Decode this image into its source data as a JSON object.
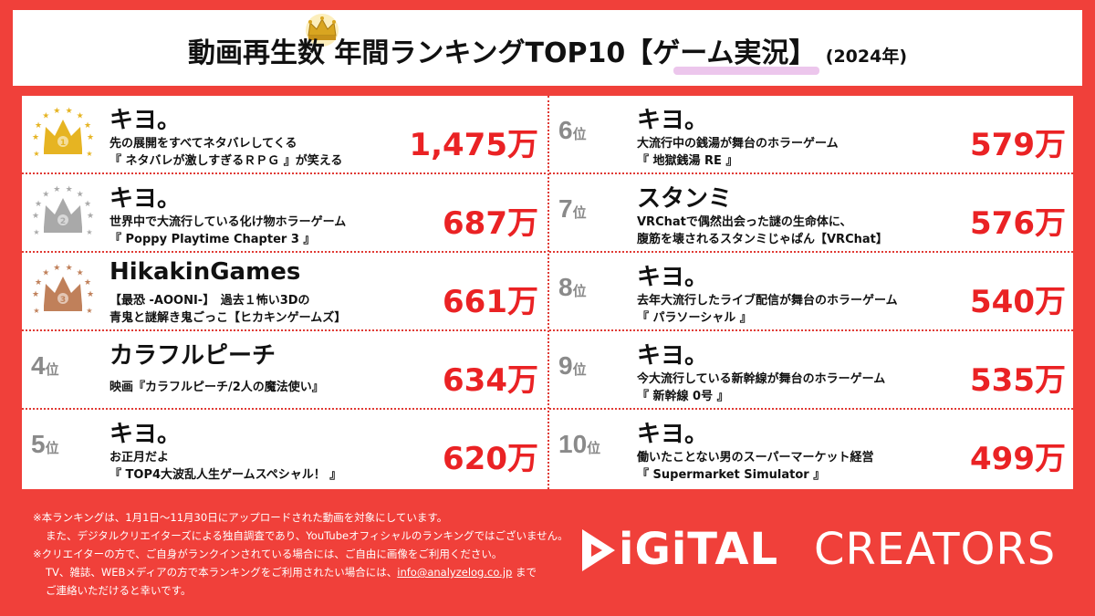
{
  "header": {
    "title": "動画再生数 年間ランキングTOP10【ゲーム実況】",
    "year": "(2024年)"
  },
  "rank_suffix": "位",
  "rankings": [
    {
      "rank": "1",
      "name": "キヨ。",
      "desc": [
        "先の展開をすべてネタバレしてくる",
        "『 ネタバレが激しすぎるＲＰＧ 』が笑える"
      ],
      "views": "1,475万",
      "medal": "gold",
      "medal_color": "#e6b422"
    },
    {
      "rank": "2",
      "name": "キヨ。",
      "desc": [
        "世界中で大流行している化け物ホラーゲーム",
        "『 Poppy Playtime Chapter 3 』"
      ],
      "views": "687万",
      "medal": "silver",
      "medal_color": "#a9a9a9"
    },
    {
      "rank": "3",
      "name": "HikakinGames",
      "desc": [
        "【最恐 -AOONI-】　過去１怖い3Dの",
        "青鬼と謎解き鬼ごっこ【ヒカキンゲームズ】"
      ],
      "views": "661万",
      "medal": "bronze",
      "medal_color": "#c0805a"
    },
    {
      "rank": "4",
      "name": "カラフルピーチ",
      "desc": [
        "映画『カラフルピーチ/2人の魔法使い』"
      ],
      "views": "634万"
    },
    {
      "rank": "5",
      "name": "キヨ。",
      "desc": [
        "お正月だよ",
        "『 TOP4大波乱人生ゲームスペシャル！ 』"
      ],
      "views": "620万"
    },
    {
      "rank": "6",
      "name": "キヨ。",
      "desc": [
        "大流行中の銭湯が舞台のホラーゲーム",
        "『 地獄銭湯 RE 』"
      ],
      "views": "579万"
    },
    {
      "rank": "7",
      "name": "スタンミ",
      "desc": [
        "VRChatで偶然出会った謎の生命体に、",
        "腹筋を壊されるスタンミじゃぱん【VRChat】"
      ],
      "views": "576万"
    },
    {
      "rank": "8",
      "name": "キヨ。",
      "desc": [
        "去年大流行したライブ配信が舞台のホラーゲーム",
        "『 パラソーシャル 』"
      ],
      "views": "540万"
    },
    {
      "rank": "9",
      "name": "キヨ。",
      "desc": [
        "今大流行している新幹線が舞台のホラーゲーム",
        "『 新幹線 0号 』"
      ],
      "views": "535万"
    },
    {
      "rank": "10",
      "name": "キヨ。",
      "desc": [
        "働いたことない男のスーパーマーケット経営",
        "『 Supermarket Simulator 』"
      ],
      "views": "499万"
    }
  ],
  "footer": {
    "note1": "※本ランキングは、1月1日〜11月30日にアップロードされた動画を対象にしています。",
    "note2": "また、デジタルクリエイターズによる独自調査であり、YouTubeオフィシャルのランキングではございません。",
    "note3": "※クリエイターの方で、ご自身がランクインされている場合には、ご自由に画像をご利用ください。",
    "note4_pre": "TV、雑誌、WEBメディアの方で本ランキングをご利用されたい場合には、",
    "note4_email": "info@analyzelog.co.jp",
    "note4_post": " まで",
    "note5": "ご連絡いただけると幸いです。"
  },
  "logo": {
    "part1": "iGiTAL",
    "part2": "CREATORS"
  },
  "colors": {
    "background": "#f0403a",
    "views_red": "#ea2224",
    "rank_gray": "#8a8a8a",
    "highlight_pink": "#ecc6ec"
  }
}
